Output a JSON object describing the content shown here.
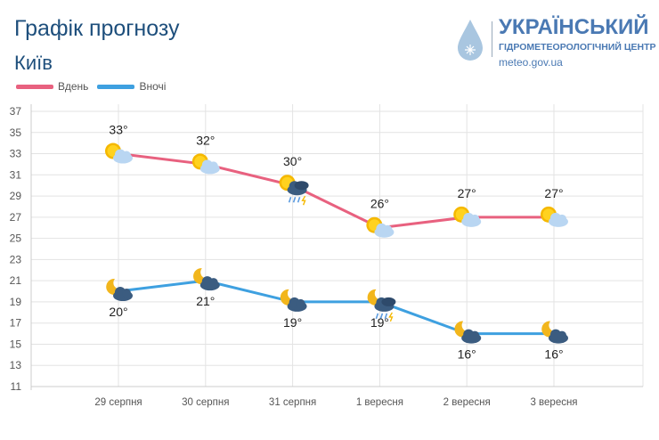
{
  "header": {
    "title": "Графік прогнозу",
    "city": "Київ"
  },
  "logo": {
    "name": "УКРАЇНСЬКИЙ",
    "subtitle": "ГІДРОМЕТЕОРОЛОГІЧНИЙ ЦЕНТР",
    "url": "meteo.gov.ua"
  },
  "chart_data": {
    "type": "line",
    "categories": [
      "29 серпня",
      "30 серпня",
      "31 серпня",
      "1 вересня",
      "2 вересня",
      "3 вересня"
    ],
    "ylim": [
      11,
      37
    ],
    "yticks": [
      11,
      13,
      15,
      17,
      19,
      21,
      23,
      25,
      27,
      29,
      31,
      33,
      35,
      37
    ],
    "grid": true,
    "legend": "top-left",
    "series": [
      {
        "name": "Вдень",
        "color": "#e8617f",
        "values": [
          33,
          32,
          30,
          26,
          27,
          27
        ],
        "labels": [
          "33°",
          "32°",
          "30°",
          "26°",
          "27°",
          "27°"
        ],
        "icons": [
          "sun-cloud",
          "sun-cloud",
          "sun-storm-rain",
          "sun-cloud",
          "sun-cloud",
          "sun-cloud"
        ]
      },
      {
        "name": "Вночі",
        "color": "#3ea0e0",
        "values": [
          20,
          21,
          19,
          19,
          16,
          16
        ],
        "labels": [
          "20°",
          "21°",
          "19°",
          "19°",
          "16°",
          "16°"
        ],
        "icons": [
          "moon-cloud",
          "moon-cloud",
          "moon-cloud",
          "moon-storm-rain",
          "moon-cloud",
          "moon-cloud"
        ]
      }
    ]
  }
}
